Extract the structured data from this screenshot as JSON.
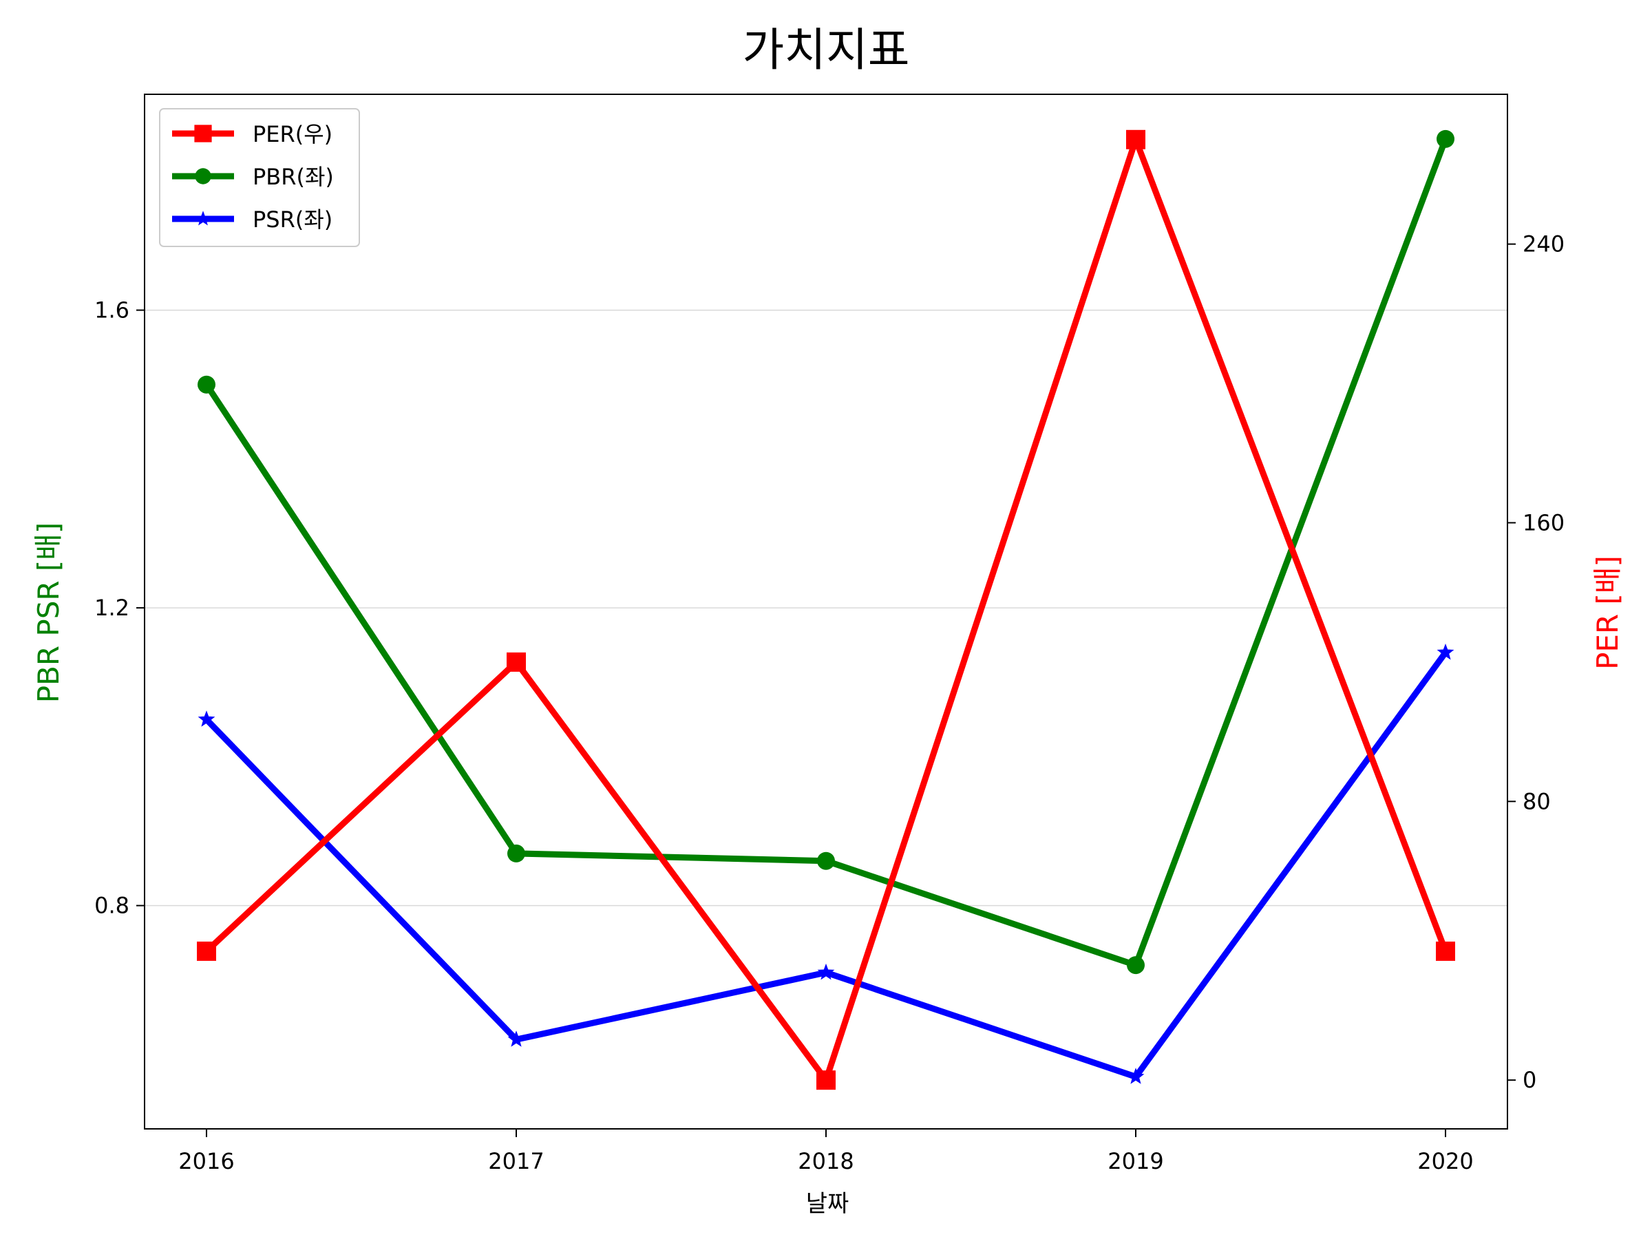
{
  "chart_data": {
    "type": "line",
    "title": "가치지표",
    "xlabel": "날짜",
    "ylabel_left": "PBR PSR [배]",
    "ylabel_right": "PER [배]",
    "categories": [
      "2016",
      "2017",
      "2018",
      "2019",
      "2020"
    ],
    "yticks_left": [
      0.8,
      1.2,
      1.6
    ],
    "yticks_right": [
      0,
      80,
      160,
      240
    ],
    "ylim_left": [
      0.5,
      1.89
    ],
    "ylim_right": [
      -14,
      283
    ],
    "grid": "horizontal-left-axis",
    "legend_position": "top-left",
    "series": [
      {
        "name": "PER(우)",
        "axis": "right",
        "color": "#ff0000",
        "marker": "square",
        "values": [
          37,
          120,
          0,
          270,
          37
        ]
      },
      {
        "name": "PBR(좌)",
        "axis": "left",
        "color": "#008000",
        "marker": "circle",
        "values": [
          1.5,
          0.87,
          0.86,
          0.72,
          1.83
        ]
      },
      {
        "name": "PSR(좌)",
        "axis": "left",
        "color": "#0000ff",
        "marker": "star",
        "values": [
          1.05,
          0.62,
          0.71,
          0.57,
          1.14
        ]
      }
    ],
    "colors": {
      "left_axis_label": "#008000",
      "right_axis_label": "#ff0000",
      "grid": "#d9d9d9"
    }
  }
}
